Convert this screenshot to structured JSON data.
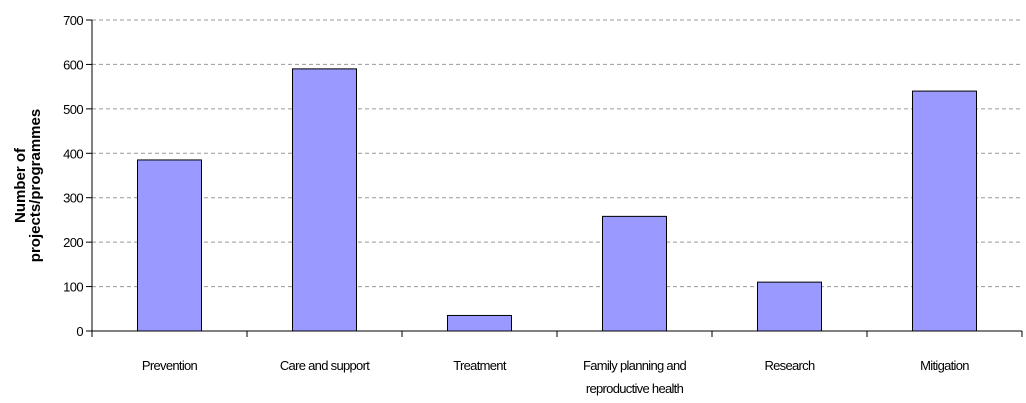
{
  "chart_data": {
    "type": "bar",
    "categories": [
      [
        "Prevention"
      ],
      [
        "Care and support"
      ],
      [
        "Treatment"
      ],
      [
        "Family planning and",
        "reproductive health"
      ],
      [
        "Research"
      ],
      [
        "Mitigation"
      ]
    ],
    "values": [
      385,
      590,
      35,
      258,
      110,
      540
    ],
    "ylabel": [
      "Number of",
      "projects/programmes"
    ],
    "xlabel": "",
    "title": "",
    "ylim": [
      0,
      700
    ],
    "yticks": [
      0,
      100,
      200,
      300,
      400,
      500,
      600,
      700
    ],
    "grid": true,
    "legend": "none"
  },
  "colors": {
    "bar_fill": "#9999ff",
    "bar_stroke": "#000000",
    "gridline": "#999999",
    "axis": "#000000"
  }
}
